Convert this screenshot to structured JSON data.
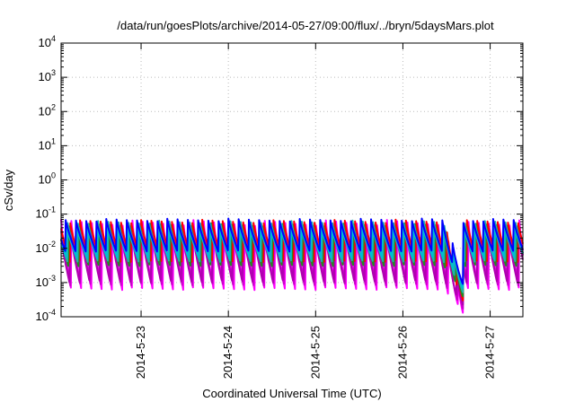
{
  "chart_data": {
    "type": "line",
    "title": "/data/run/goesPlots/archive/2014-05-27/09:00/flux/../bryn/5daysMars.plot",
    "xlabel": "Coordinated Universal Time (UTC)",
    "ylabel": "cSv/day",
    "yscale": "log",
    "ylim": [
      0.0001,
      10000
    ],
    "y_ticks": [
      {
        "base": "10",
        "exp": "4",
        "value": 10000
      },
      {
        "base": "10",
        "exp": "3",
        "value": 1000
      },
      {
        "base": "10",
        "exp": "2",
        "value": 100
      },
      {
        "base": "10",
        "exp": "1",
        "value": 10
      },
      {
        "base": "10",
        "exp": "0",
        "value": 1
      },
      {
        "base": "10",
        "exp": "-1",
        "value": 0.1
      },
      {
        "base": "10",
        "exp": "-2",
        "value": 0.01
      },
      {
        "base": "10",
        "exp": "-3",
        "value": 0.001
      },
      {
        "base": "10",
        "exp": "-4",
        "value": 0.0001
      }
    ],
    "xlim": [
      "2014-05-22 02:00",
      "2014-05-27 09:00"
    ],
    "x_ticks": [
      {
        "label": "2014-5-23",
        "value": "2014-05-23 00:00"
      },
      {
        "label": "2014-5-24",
        "value": "2014-05-24 00:00"
      },
      {
        "label": "2014-5-25",
        "value": "2014-05-25 00:00"
      },
      {
        "label": "2014-5-26",
        "value": "2014-05-26 00:00"
      },
      {
        "label": "2014-5-27",
        "value": "2014-05-27 00:00"
      }
    ],
    "grid": true,
    "legend": "none",
    "pattern": {
      "cycle_hours": 2.8,
      "dip_start": "2014-05-26 14:30",
      "dip_end": "2014-05-26 16:30",
      "dip_min": 0.00013
    },
    "series": [
      {
        "color": "#ff00ff",
        "peak": 0.07,
        "trough": 0.0006,
        "phase_hours": 0.0
      },
      {
        "color": "#cc00cc",
        "peak": 0.06,
        "trough": 0.0008,
        "phase_hours": 0.25
      },
      {
        "color": "#b000b0",
        "peak": 0.05,
        "trough": 0.001,
        "phase_hours": 0.5
      },
      {
        "color": "#ff0000",
        "peak": 0.07,
        "trough": 0.004,
        "phase_hours": 0.4
      },
      {
        "color": "#228b22",
        "peak": 0.055,
        "trough": 0.003,
        "phase_hours": 0.8
      },
      {
        "color": "#20b2aa",
        "peak": 0.065,
        "trough": 0.004,
        "phase_hours": 1.05
      },
      {
        "color": "#00bcd4",
        "peak": 0.05,
        "trough": 0.005,
        "phase_hours": 1.3
      },
      {
        "color": "#0000ff",
        "peak": 0.075,
        "trough": 0.008,
        "phase_hours": 1.6
      }
    ]
  }
}
